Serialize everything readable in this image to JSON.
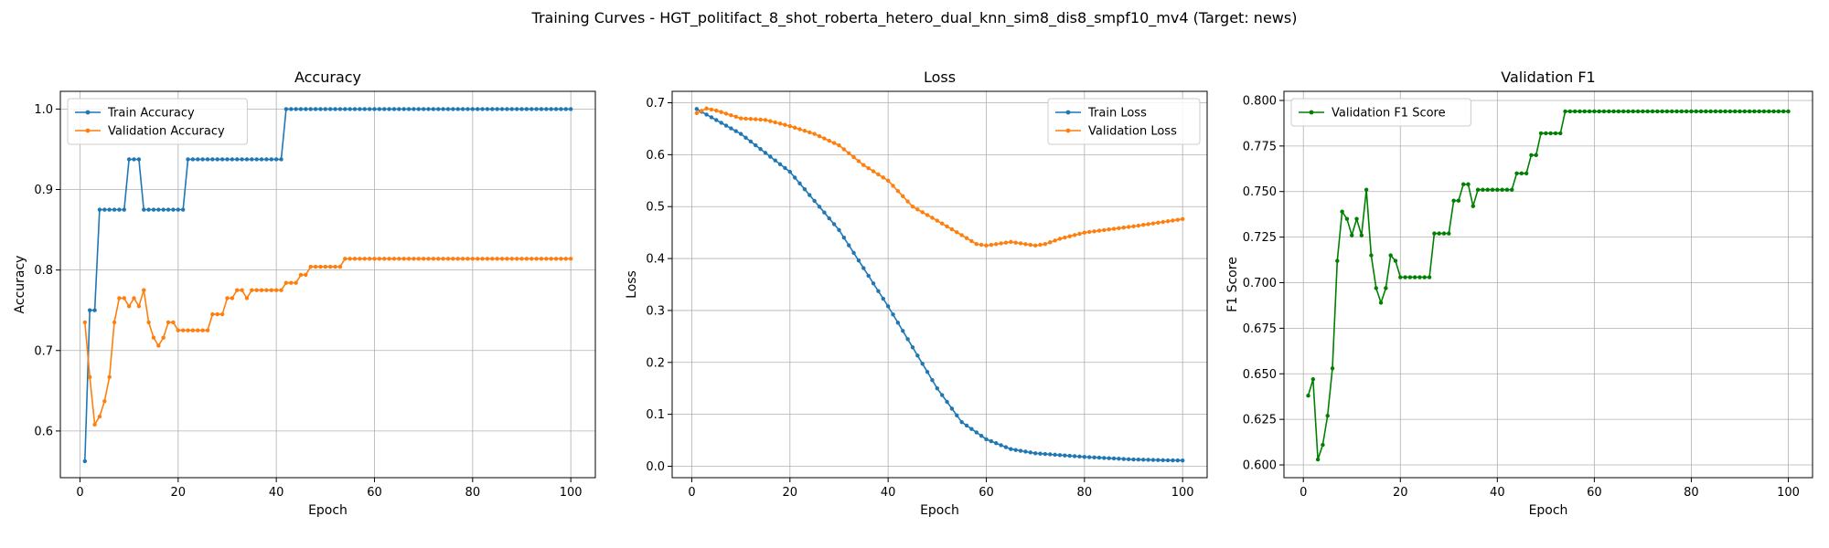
{
  "suptitle": "Training Curves - HGT_politifact_8_shot_roberta_hetero_dual_knn_sim8_dis8_smpf10_mv4 (Target: news)",
  "colors": {
    "blue": "#1f77b4",
    "orange": "#ff7f0e",
    "green": "#008000",
    "grid": "#b0b0b0"
  },
  "chart_data": [
    {
      "type": "line",
      "title": "Accuracy",
      "xlabel": "Epoch",
      "ylabel": "Accuracy",
      "xlim": [
        -4,
        105
      ],
      "ylim": [
        0.542,
        1.022
      ],
      "xticks": [
        0,
        20,
        40,
        60,
        80,
        100
      ],
      "yticks": [
        0.6,
        0.7,
        0.8,
        0.9,
        1.0
      ],
      "ytick_labels": [
        "0.6",
        "0.7",
        "0.8",
        "0.9",
        "1.0"
      ],
      "grid": true,
      "legend": "upper-left",
      "series": [
        {
          "name": "Train Accuracy",
          "color": "#1f77b4",
          "segments": [
            [
              1,
              1,
              0.5625
            ],
            [
              2,
              3,
              0.75
            ],
            [
              4,
              9,
              0.875
            ],
            [
              10,
              12,
              0.9375
            ],
            [
              13,
              21,
              0.875
            ],
            [
              22,
              41,
              0.9375
            ],
            [
              42,
              100,
              1.0
            ]
          ]
        },
        {
          "name": "Validation Accuracy",
          "color": "#ff7f0e",
          "segments": [
            [
              1,
              1,
              0.735
            ],
            [
              2,
              2,
              0.667
            ],
            [
              3,
              3,
              0.608
            ],
            [
              4,
              4,
              0.618
            ],
            [
              5,
              5,
              0.637
            ],
            [
              6,
              6,
              0.667
            ],
            [
              7,
              7,
              0.735
            ],
            [
              8,
              8,
              0.765
            ],
            [
              9,
              9,
              0.765
            ],
            [
              10,
              10,
              0.755
            ],
            [
              11,
              11,
              0.765
            ],
            [
              12,
              12,
              0.755
            ],
            [
              13,
              13,
              0.775
            ],
            [
              14,
              14,
              0.735
            ],
            [
              15,
              15,
              0.716
            ],
            [
              16,
              16,
              0.706
            ],
            [
              17,
              17,
              0.716
            ],
            [
              18,
              18,
              0.735
            ],
            [
              19,
              19,
              0.735
            ],
            [
              20,
              26,
              0.725
            ],
            [
              27,
              29,
              0.745
            ],
            [
              30,
              31,
              0.765
            ],
            [
              32,
              33,
              0.775
            ],
            [
              34,
              34,
              0.765
            ],
            [
              35,
              41,
              0.775
            ],
            [
              42,
              44,
              0.784
            ],
            [
              45,
              46,
              0.794
            ],
            [
              47,
              53,
              0.804
            ],
            [
              54,
              100,
              0.814
            ]
          ]
        }
      ]
    },
    {
      "type": "line",
      "title": "Loss",
      "xlabel": "Epoch",
      "ylabel": "Loss",
      "xlim": [
        -4,
        105
      ],
      "ylim": [
        -0.022,
        0.722
      ],
      "xticks": [
        0,
        20,
        40,
        60,
        80,
        100
      ],
      "yticks": [
        0.0,
        0.1,
        0.2,
        0.3,
        0.4,
        0.5,
        0.6,
        0.7
      ],
      "ytick_labels": [
        "0.0",
        "0.1",
        "0.2",
        "0.3",
        "0.4",
        "0.5",
        "0.6",
        "0.7"
      ],
      "grid": true,
      "legend": "upper-right",
      "series": [
        {
          "name": "Train Loss",
          "color": "#1f77b4",
          "keypoints": [
            [
              1,
              0.688
            ],
            [
              10,
              0.64
            ],
            [
              20,
              0.567
            ],
            [
              30,
              0.455
            ],
            [
              40,
              0.308
            ],
            [
              50,
              0.15
            ],
            [
              55,
              0.085
            ],
            [
              60,
              0.052
            ],
            [
              65,
              0.033
            ],
            [
              70,
              0.025
            ],
            [
              80,
              0.018
            ],
            [
              90,
              0.013
            ],
            [
              100,
              0.011
            ]
          ]
        },
        {
          "name": "Validation Loss",
          "color": "#ff7f0e",
          "keypoints": [
            [
              1,
              0.68
            ],
            [
              3,
              0.689
            ],
            [
              5,
              0.685
            ],
            [
              10,
              0.67
            ],
            [
              15,
              0.667
            ],
            [
              20,
              0.655
            ],
            [
              25,
              0.64
            ],
            [
              30,
              0.618
            ],
            [
              35,
              0.58
            ],
            [
              40,
              0.55
            ],
            [
              45,
              0.5
            ],
            [
              50,
              0.473
            ],
            [
              55,
              0.445
            ],
            [
              58,
              0.428
            ],
            [
              60,
              0.425
            ],
            [
              65,
              0.432
            ],
            [
              70,
              0.425
            ],
            [
              72,
              0.428
            ],
            [
              75,
              0.438
            ],
            [
              80,
              0.45
            ],
            [
              90,
              0.462
            ],
            [
              100,
              0.476
            ]
          ]
        }
      ]
    },
    {
      "type": "line",
      "title": "Validation F1",
      "xlabel": "Epoch",
      "ylabel": "F1 Score",
      "xlim": [
        -4,
        105
      ],
      "ylim": [
        0.593,
        0.805
      ],
      "xticks": [
        0,
        20,
        40,
        60,
        80,
        100
      ],
      "yticks": [
        0.6,
        0.625,
        0.65,
        0.675,
        0.7,
        0.725,
        0.75,
        0.775,
        0.8
      ],
      "ytick_labels": [
        "0.600",
        "0.625",
        "0.650",
        "0.675",
        "0.700",
        "0.725",
        "0.750",
        "0.775",
        "0.800"
      ],
      "grid": true,
      "legend": "upper-left",
      "series": [
        {
          "name": "Validation F1 Score",
          "color": "#008000",
          "segments": [
            [
              1,
              1,
              0.638
            ],
            [
              2,
              2,
              0.647
            ],
            [
              3,
              3,
              0.603
            ],
            [
              4,
              4,
              0.611
            ],
            [
              5,
              5,
              0.627
            ],
            [
              6,
              6,
              0.653
            ],
            [
              7,
              7,
              0.712
            ],
            [
              8,
              8,
              0.739
            ],
            [
              9,
              9,
              0.735
            ],
            [
              10,
              10,
              0.726
            ],
            [
              11,
              11,
              0.735
            ],
            [
              12,
              12,
              0.726
            ],
            [
              13,
              13,
              0.751
            ],
            [
              14,
              14,
              0.715
            ],
            [
              15,
              15,
              0.697
            ],
            [
              16,
              16,
              0.689
            ],
            [
              17,
              17,
              0.697
            ],
            [
              18,
              18,
              0.715
            ],
            [
              19,
              19,
              0.712
            ],
            [
              20,
              26,
              0.703
            ],
            [
              27,
              30,
              0.727
            ],
            [
              31,
              32,
              0.745
            ],
            [
              33,
              34,
              0.754
            ],
            [
              35,
              35,
              0.742
            ],
            [
              36,
              43,
              0.751
            ],
            [
              44,
              46,
              0.76
            ],
            [
              47,
              48,
              0.77
            ],
            [
              49,
              53,
              0.782
            ],
            [
              54,
              100,
              0.794
            ]
          ]
        }
      ]
    }
  ]
}
